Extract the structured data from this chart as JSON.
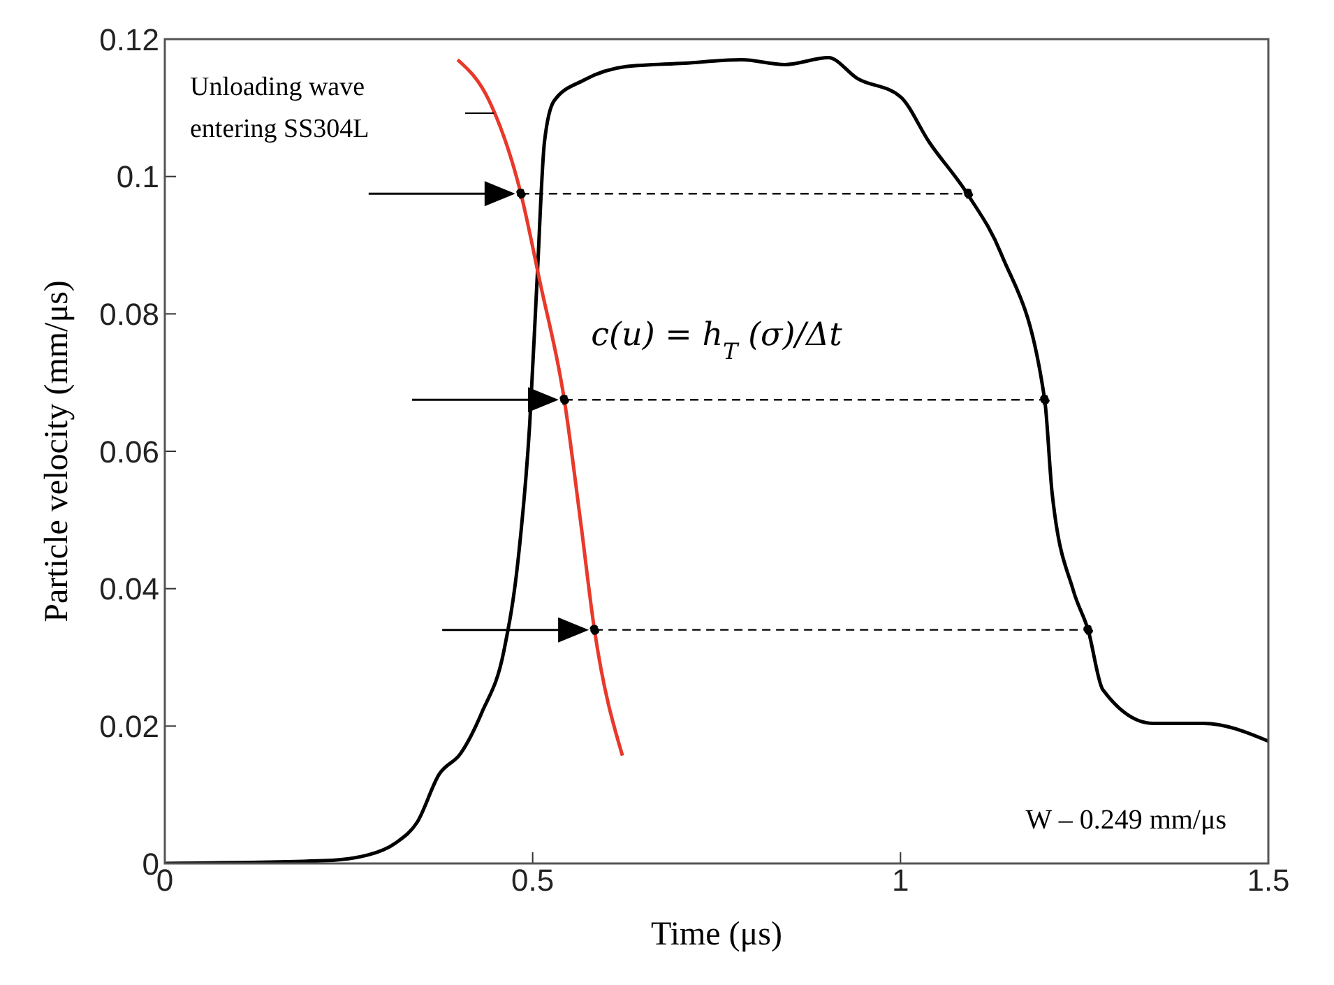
{
  "chart_data": {
    "type": "line",
    "xlabel": "Time (μs)",
    "ylabel": "Particle velocity (mm/μs)",
    "xlim": [
      0,
      1.5
    ],
    "xticks": [
      0,
      0.5,
      1,
      1.5
    ],
    "ylim": [
      0,
      0.12
    ],
    "yticks": [
      0,
      0.02,
      0.04,
      0.06,
      0.08,
      0.1,
      0.12
    ],
    "grid": false,
    "legend": false,
    "marker": "none",
    "line_style": "solid",
    "annotations": [
      "Unloading wave entering SS304L",
      "c(u) = h$_{T}$(σ)/Δt",
      "W – 0.249 mm/μs"
    ],
    "series": [
      {
        "color": "#000000",
        "x": [
          0,
          0.216,
          0.275,
          0.314,
          0.343,
          0.373,
          0.402,
          0.431,
          0.461,
          0.48,
          0.496,
          0.506,
          0.516,
          0.529,
          0.569,
          0.627,
          0.706,
          0.784,
          0.843,
          0.902,
          0.941,
          1.0,
          1.039,
          1.092,
          1.137,
          1.196,
          1.206,
          1.235,
          1.255,
          1.275,
          1.343,
          1.412,
          1.5
        ],
        "values": [
          0,
          0.0004,
          0.0012,
          0.003,
          0.006,
          0.013,
          0.016,
          0.022,
          0.031,
          0.044,
          0.064,
          0.085,
          0.105,
          0.111,
          0.114,
          0.116,
          0.1165,
          0.117,
          0.1163,
          0.1173,
          0.1143,
          0.1116,
          0.105,
          0.0973,
          0.0887,
          0.0675,
          0.054,
          0.0397,
          0.034,
          0.0253,
          0.0204,
          0.0204,
          0.0178
        ]
      },
      {
        "color": "#e8392b",
        "x": [
          0.398,
          0.441,
          0.484,
          0.51,
          0.543,
          0.565,
          0.584,
          0.622
        ],
        "values": [
          0.117,
          0.111,
          0.0975,
          0.0846,
          0.0675,
          0.0499,
          0.034,
          0.0157
        ]
      },
      {
        "color": "#000000",
        "line_style": "dashed",
        "marker": "circle",
        "x": [
          0.484,
          1.092
        ],
        "values": [
          0.0975,
          0.0975
        ]
      },
      {
        "color": "#000000",
        "line_style": "dashed",
        "marker": "circle",
        "x": [
          0.543,
          1.196
        ],
        "values": [
          0.0675,
          0.0675
        ]
      },
      {
        "color": "#000000",
        "line_style": "dashed",
        "marker": "circle",
        "x": [
          0.584,
          1.255
        ],
        "values": [
          0.034,
          0.034
        ]
      }
    ]
  }
}
